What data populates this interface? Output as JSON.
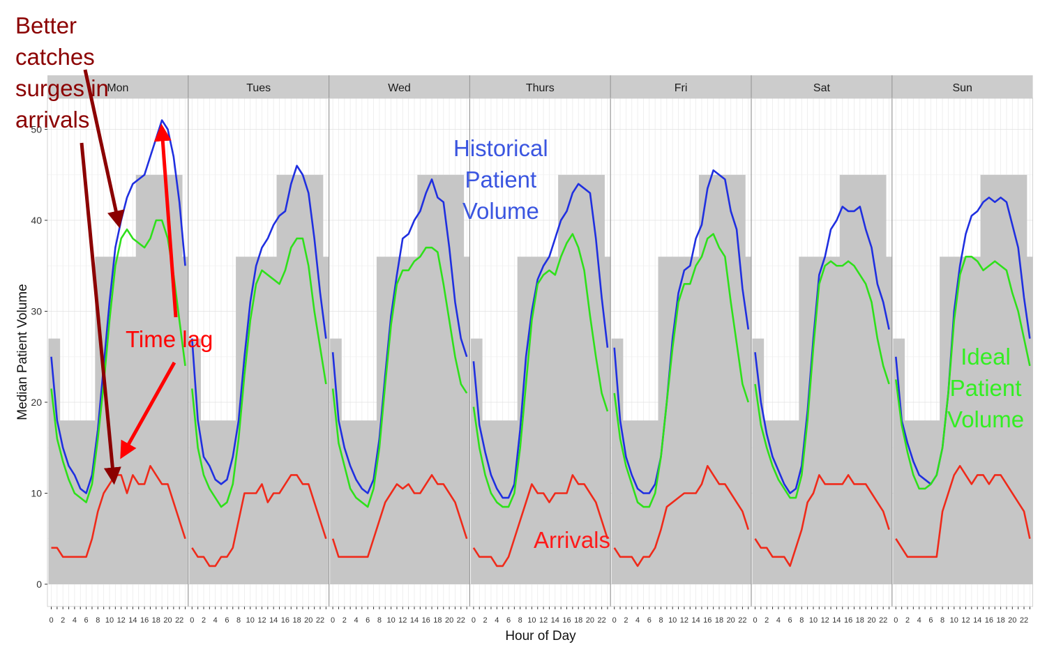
{
  "chart_data": {
    "type": "line",
    "xlabel": "Hour of Day",
    "ylabel": "Median Patient Volume",
    "ylim": [
      0,
      52
    ],
    "yticks": [
      0,
      10,
      20,
      30,
      40,
      50
    ],
    "xticks": [
      0,
      2,
      4,
      6,
      8,
      10,
      12,
      14,
      16,
      18,
      20,
      22
    ],
    "x": [
      0,
      1,
      2,
      3,
      4,
      5,
      6,
      7,
      8,
      9,
      10,
      11,
      12,
      13,
      14,
      15,
      16,
      17,
      18,
      19,
      20,
      21,
      22,
      23
    ],
    "grid": true,
    "legend": "none",
    "colors": {
      "historical": "#1f2fe0",
      "ideal": "#2ee01a",
      "arrivals": "#ef2a1a",
      "staffing": "#c6c6c6",
      "strip": "#cccccc",
      "annotation_dark": "#8b0000",
      "annotation_red": "#ff0000",
      "annotation_blue": "#3a55e0",
      "annotation_green": "#33ee22"
    },
    "staffing_levels": [
      27,
      18,
      36,
      45,
      36
    ],
    "staffing_breaks": [
      2,
      8,
      15,
      23
    ],
    "panels": [
      {
        "day": "Mon",
        "historical": [
          25,
          18,
          15,
          13,
          12,
          10.5,
          10,
          12,
          17,
          24,
          31,
          37,
          40,
          42.5,
          44,
          44.5,
          45,
          47,
          49,
          51,
          50,
          47,
          42,
          35
        ],
        "ideal": [
          21.5,
          16,
          13.5,
          11.5,
          10,
          9.5,
          9,
          11,
          16,
          22,
          29,
          35,
          38,
          39,
          38,
          37.5,
          37,
          38,
          40,
          40,
          38,
          34,
          29,
          24
        ],
        "arrivals": [
          4,
          4,
          3,
          3,
          3,
          3,
          3,
          5,
          8,
          10,
          11,
          12,
          12,
          10,
          12,
          11,
          11,
          13,
          12,
          11,
          11,
          9,
          7,
          5
        ]
      },
      {
        "day": "Tues",
        "historical": [
          27,
          18,
          14,
          13,
          11.5,
          11,
          11.5,
          14,
          18,
          25,
          31,
          35,
          37,
          38,
          39.5,
          40.5,
          41,
          44,
          46,
          45,
          43,
          38,
          32,
          27
        ],
        "ideal": [
          21.5,
          15,
          12,
          10.5,
          9.5,
          8.5,
          9,
          11,
          16,
          23,
          29,
          33,
          34.5,
          34,
          33.5,
          33,
          34.5,
          37,
          38,
          38,
          35,
          30,
          26,
          22
        ],
        "arrivals": [
          4,
          3,
          3,
          2,
          2,
          3,
          3,
          4,
          7,
          10,
          10,
          10,
          11,
          9,
          10,
          10,
          11,
          12,
          12,
          11,
          11,
          9,
          7,
          5
        ]
      },
      {
        "day": "Wed",
        "historical": [
          25.5,
          18,
          15,
          13,
          11.5,
          10.5,
          10,
          11.5,
          16,
          23,
          29.5,
          34,
          38,
          38.5,
          40,
          41,
          43,
          44.5,
          42.5,
          42,
          37,
          31,
          27,
          25
        ],
        "ideal": [
          21.5,
          15.5,
          13,
          10.5,
          9.5,
          9,
          8.5,
          10.5,
          15,
          22,
          28.5,
          33,
          34.5,
          34.5,
          35.5,
          36,
          37,
          37,
          36.5,
          33,
          29,
          25,
          22,
          21
        ],
        "arrivals": [
          5,
          3,
          3,
          3,
          3,
          3,
          3,
          5,
          7,
          9,
          10,
          11,
          10.5,
          11,
          10,
          10,
          11,
          12,
          11,
          11,
          10,
          9,
          7,
          5
        ]
      },
      {
        "day": "Thurs",
        "historical": [
          24.5,
          17.5,
          14.5,
          12,
          10.5,
          9.5,
          9.5,
          11,
          17,
          25,
          30,
          33.5,
          35,
          36,
          38,
          40,
          41,
          43,
          44,
          43.5,
          43,
          38,
          31.5,
          26
        ],
        "ideal": [
          19.5,
          15,
          12,
          10,
          9,
          8.5,
          8.5,
          10,
          15,
          22,
          29,
          33,
          34,
          34.5,
          34,
          36,
          37.5,
          38.5,
          37,
          34.5,
          29.5,
          25,
          21,
          19
        ],
        "arrivals": [
          4,
          3,
          3,
          3,
          2,
          2,
          3,
          5,
          7,
          9,
          11,
          10,
          10,
          9,
          10,
          10,
          10,
          12,
          11,
          11,
          10,
          9,
          7,
          5
        ]
      },
      {
        "day": "Fri",
        "historical": [
          26,
          18,
          14,
          12,
          10.5,
          10,
          10,
          11,
          14,
          20,
          27,
          32,
          34.5,
          35,
          38,
          39.5,
          43.5,
          45.5,
          45,
          44.5,
          41,
          39,
          32.5,
          28
        ],
        "ideal": [
          21,
          16,
          13,
          11,
          9,
          8.5,
          8.5,
          10,
          14,
          20,
          26,
          31,
          33,
          33,
          35,
          36,
          38,
          38.5,
          37,
          36,
          31,
          26.5,
          22,
          20
        ],
        "arrivals": [
          4,
          3,
          3,
          3,
          2,
          3,
          3,
          4,
          6,
          8.5,
          9,
          9.5,
          10,
          10,
          10,
          11,
          13,
          12,
          11,
          11,
          10,
          9,
          8,
          6
        ]
      },
      {
        "day": "Sat",
        "historical": [
          25.5,
          20,
          16.5,
          14,
          12.5,
          11,
          10,
          10.5,
          13,
          19,
          27,
          34,
          36,
          39,
          40,
          41.5,
          41,
          41,
          41.5,
          39,
          37,
          33,
          31,
          28
        ],
        "ideal": [
          22,
          17.5,
          15,
          13,
          11.5,
          10.5,
          9.5,
          9.5,
          12,
          18,
          26,
          33,
          35,
          35.5,
          35,
          35,
          35.5,
          35,
          34,
          33,
          31,
          27,
          24,
          22
        ],
        "arrivals": [
          5,
          4,
          4,
          3,
          3,
          3,
          2,
          4,
          6,
          9,
          10,
          12,
          11,
          11,
          11,
          11,
          12,
          11,
          11,
          11,
          10,
          9,
          8,
          6
        ]
      },
      {
        "day": "Sun",
        "historical": [
          25,
          18,
          15.5,
          13.5,
          12,
          11.5,
          11,
          12,
          15,
          21,
          30,
          35,
          38.5,
          40.5,
          41,
          42,
          42.5,
          42,
          42.5,
          42,
          39.5,
          37,
          31.5,
          27
        ],
        "ideal": [
          22.5,
          17.5,
          14.5,
          12,
          10.5,
          10.5,
          11,
          12,
          15,
          21,
          29,
          34,
          36,
          36,
          35.5,
          34.5,
          35,
          35.5,
          35,
          34.5,
          32,
          30,
          27,
          24
        ],
        "arrivals": [
          5,
          4,
          3,
          3,
          3,
          3,
          3,
          3,
          8,
          10,
          12,
          13,
          12,
          11,
          12,
          12,
          11,
          12,
          12,
          11,
          10,
          9,
          8,
          5
        ]
      }
    ]
  },
  "annotations": {
    "catches_surges": "Better\ncatches\nsurges in\narrivals",
    "time_lag": "Time lag",
    "historical": "Historical\nPatient\nVolume",
    "ideal": "Ideal\nPatient\nVolume",
    "arrivals": "Arrivals"
  }
}
